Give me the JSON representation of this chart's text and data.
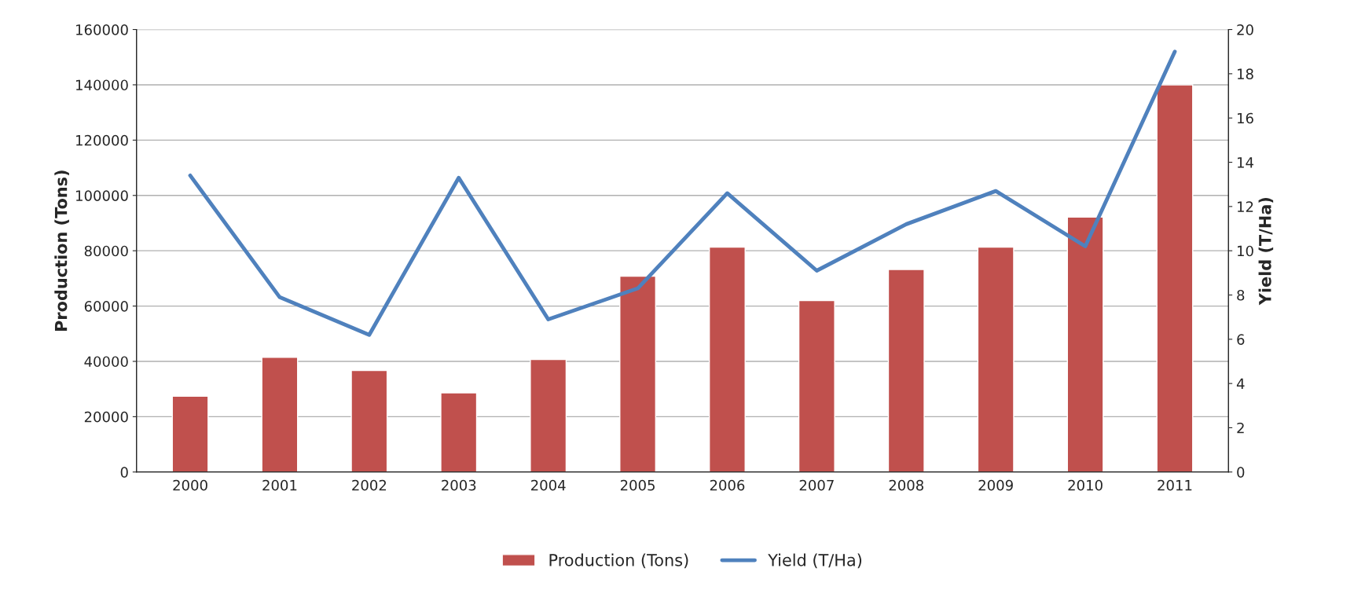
{
  "chart_data": {
    "type": "bar",
    "categories": [
      "2000",
      "2001",
      "2002",
      "2003",
      "2004",
      "2005",
      "2006",
      "2007",
      "2008",
      "2009",
      "2010",
      "2011"
    ],
    "series": [
      {
        "name": "Production (Tons)",
        "color": "#c0504d",
        "values": [
          27400,
          41500,
          36700,
          28600,
          40700,
          70800,
          81300,
          62000,
          73200,
          81300,
          92200,
          140000
        ]
      },
      {
        "name": "Yield (T/Ha)",
        "type": "line",
        "axis": "y2",
        "color": "#4f81bd",
        "values": [
          13.4,
          7.9,
          6.2,
          13.3,
          6.9,
          8.3,
          12.6,
          9.1,
          11.2,
          12.7,
          10.2,
          19.0
        ]
      }
    ],
    "ylabel": "Production (Tons)",
    "y2label": "Yield (T/Ha)",
    "ylim": [
      0,
      160000
    ],
    "yticks": [
      0,
      20000,
      40000,
      60000,
      80000,
      100000,
      120000,
      140000,
      160000
    ],
    "y2lim": [
      0,
      20
    ],
    "y2ticks": [
      0,
      2,
      4,
      6,
      8,
      10,
      12,
      14,
      16,
      18,
      20
    ],
    "grid": "y",
    "legend": "bottom"
  }
}
